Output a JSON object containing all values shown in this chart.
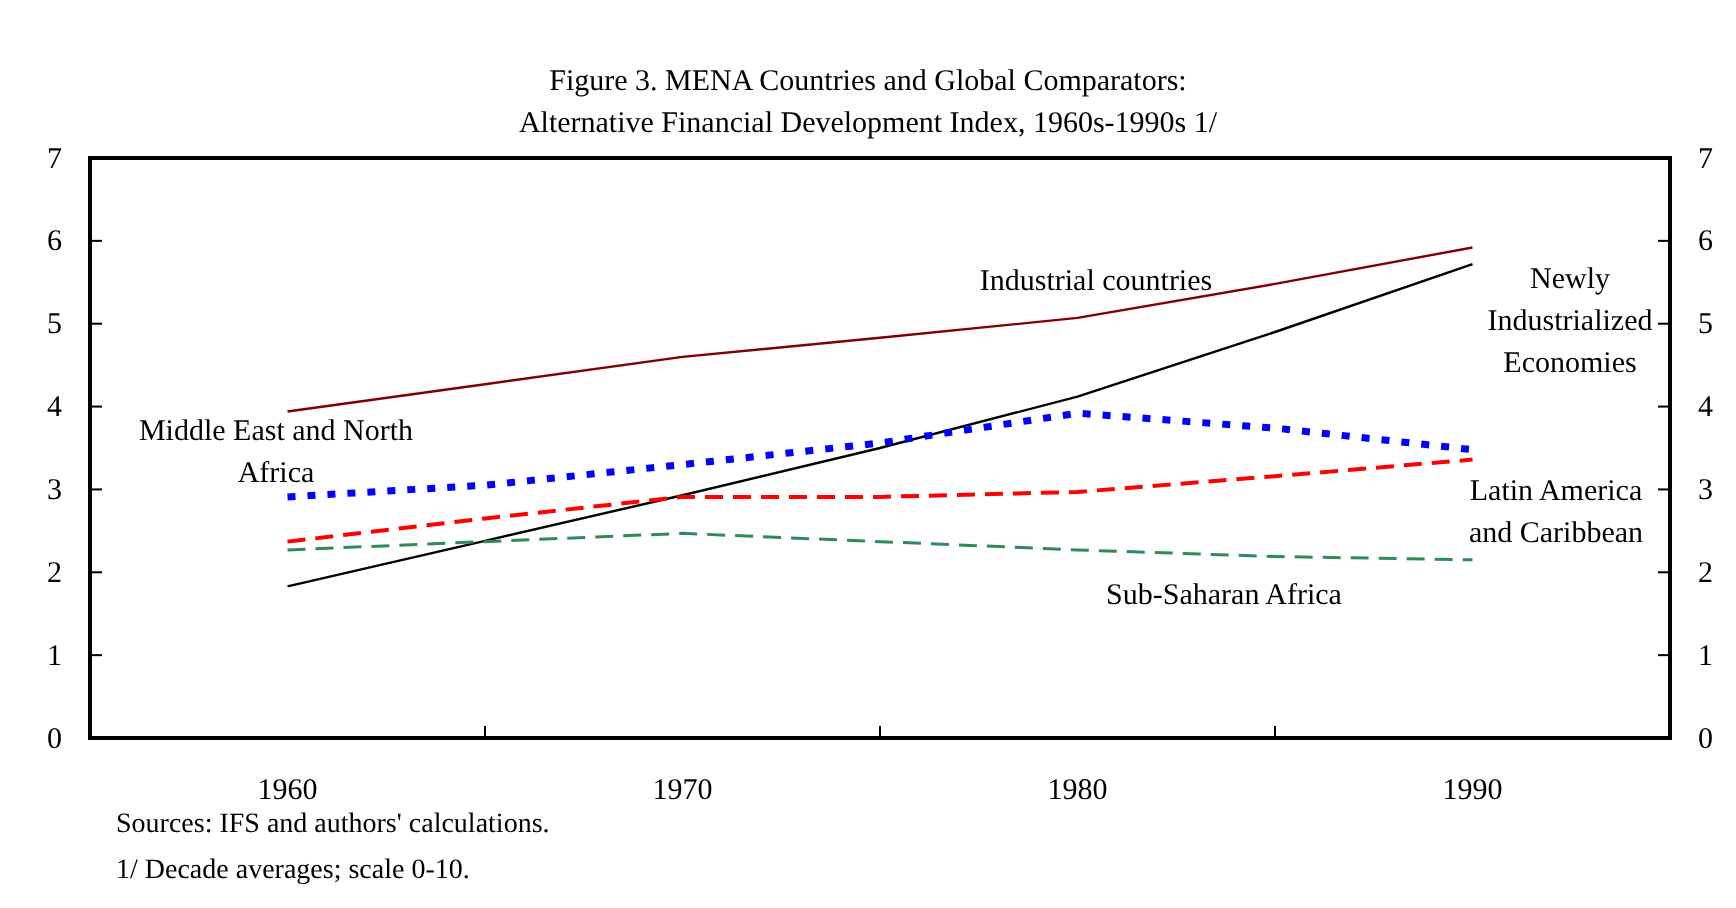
{
  "chart_data": {
    "type": "line",
    "title": "Figure 3. MENA Countries and Global Comparators:",
    "subtitle": "Alternative Financial Development Index, 1960s-1990s 1/",
    "x": [
      1960,
      1965,
      1970,
      1975,
      1980,
      1985,
      1990
    ],
    "xlim": [
      1955,
      1995
    ],
    "xticks": [
      1960,
      {
        "value": 1965,
        "label": null
      },
      1970,
      {
        "value": 1975,
        "label": null
      },
      1980,
      {
        "value": 1985,
        "label": null
      },
      1990
    ],
    "ylim": [
      0,
      7
    ],
    "yticks": [
      0,
      1,
      2,
      3,
      4,
      5,
      6,
      7
    ],
    "y2lim": [
      0,
      7
    ],
    "y2ticks": [
      0,
      1,
      2,
      3,
      4,
      5,
      6,
      7
    ],
    "series": [
      {
        "name": "Industrial countries",
        "color": "#800000",
        "line_style": "solid",
        "values": [
          3.94,
          4.27,
          4.6,
          4.83,
          5.07,
          5.48,
          5.92
        ]
      },
      {
        "name": "Newly Industrialized Economies",
        "color": "#000000",
        "line_style": "solid",
        "values": [
          1.83,
          2.38,
          2.93,
          3.5,
          4.12,
          4.9,
          5.72
        ]
      },
      {
        "name": "Middle East and North Africa",
        "color": "#0000ff",
        "line_style": "dotted",
        "values": [
          2.91,
          3.05,
          3.3,
          3.56,
          3.92,
          3.74,
          3.48
        ]
      },
      {
        "name": "Latin America and Caribbean",
        "color": "#ff0000",
        "line_style": "dashed",
        "values": [
          2.37,
          2.65,
          2.91,
          2.91,
          2.97,
          3.16,
          3.36
        ]
      },
      {
        "name": "Sub-Saharan Africa",
        "color": "#2e8b57",
        "line_style": "dashed",
        "values": [
          2.27,
          2.37,
          2.47,
          2.37,
          2.27,
          2.19,
          2.15
        ]
      }
    ],
    "grid": false,
    "marker": "none",
    "annotations": [
      "Sources: IFS and authors' calculations.",
      "1/ Decade averages; scale 0-10."
    ]
  }
}
